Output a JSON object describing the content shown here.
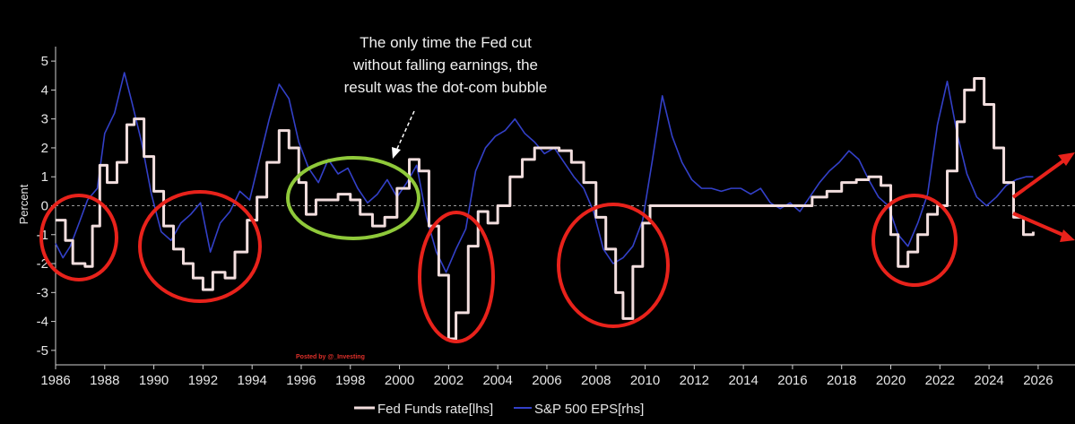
{
  "chart_data": {
    "type": "line",
    "ylabel": "Percent",
    "ylim": [
      -5.5,
      5.5
    ],
    "yticks": [
      "5",
      "4",
      "3",
      "2",
      "1",
      "0",
      "-1",
      "-2",
      "-3",
      "-4",
      "-5"
    ],
    "xlim": [
      1986,
      2027.5
    ],
    "xticks": [
      "1986",
      "1988",
      "1990",
      "1992",
      "1994",
      "1996",
      "1998",
      "2000",
      "2002",
      "2004",
      "2006",
      "2008",
      "2010",
      "2012",
      "2014",
      "2016",
      "2018",
      "2020",
      "2022",
      "2024",
      "2026"
    ],
    "annotation": "The only time the Fed cut without falling earnings, the result was the dot-com bubble",
    "annotation_lines": [
      "The only time the Fed cut",
      "without falling earnings, the",
      "result was the dot-com bubble"
    ],
    "watermark": "Posted by @_Investing",
    "series": [
      {
        "name": "Fed Funds rate[lhs]",
        "color": "#f2dede",
        "style": "step",
        "x": [
          1986.0,
          1986.4,
          1986.7,
          1987.2,
          1987.5,
          1987.8,
          1988.1,
          1988.5,
          1988.9,
          1989.2,
          1989.6,
          1990.0,
          1990.4,
          1990.8,
          1991.2,
          1991.6,
          1992.0,
          1992.4,
          1992.9,
          1993.3,
          1993.8,
          1994.2,
          1994.6,
          1995.1,
          1995.5,
          1995.9,
          1996.2,
          1996.6,
          1997.0,
          1997.5,
          1998.0,
          1998.4,
          1998.9,
          1999.4,
          1999.9,
          2000.4,
          2000.8,
          2001.2,
          2001.6,
          2002.0,
          2002.3,
          2002.8,
          2003.2,
          2003.6,
          2004.0,
          2004.5,
          2005.0,
          2005.5,
          2006.0,
          2006.5,
          2007.0,
          2007.5,
          2008.0,
          2008.4,
          2008.8,
          2009.1,
          2009.5,
          2009.9,
          2010.2,
          2012.0,
          2014.0,
          2016.0,
          2016.8,
          2017.4,
          2018.0,
          2018.6,
          2019.1,
          2019.6,
          2020.0,
          2020.3,
          2020.7,
          2021.1,
          2021.5,
          2021.9,
          2022.3,
          2022.7,
          2023.0,
          2023.4,
          2023.8,
          2024.2,
          2024.6,
          2025.0,
          2025.4,
          2025.8
        ],
        "y": [
          -0.5,
          -1.2,
          -2.0,
          -2.1,
          -0.7,
          1.4,
          0.8,
          1.5,
          2.8,
          3.0,
          1.7,
          0.5,
          -0.7,
          -1.5,
          -2.0,
          -2.5,
          -2.9,
          -2.3,
          -2.5,
          -1.6,
          -0.5,
          0.3,
          1.5,
          2.6,
          2.0,
          0.8,
          -0.3,
          0.2,
          0.2,
          0.4,
          0.2,
          -0.3,
          -0.7,
          -0.4,
          0.6,
          1.6,
          1.2,
          -0.7,
          -2.4,
          -4.6,
          -3.7,
          -1.4,
          -0.2,
          -0.6,
          0.0,
          1.0,
          1.6,
          2.0,
          2.0,
          1.9,
          1.5,
          0.8,
          -0.4,
          -1.5,
          -3.0,
          -3.9,
          -2.1,
          -0.6,
          0.0,
          0.0,
          0.0,
          0.0,
          0.3,
          0.5,
          0.8,
          0.9,
          1.0,
          0.7,
          -1.0,
          -2.1,
          -1.6,
          -1.0,
          -0.3,
          0.0,
          1.2,
          2.9,
          4.0,
          4.4,
          3.5,
          2.0,
          0.8,
          -0.4,
          -1.0,
          -0.9
        ]
      },
      {
        "name": "S&P 500 EPS[rhs]",
        "color": "#3340c8",
        "style": "line",
        "x": [
          1986.0,
          1986.3,
          1986.6,
          1987.0,
          1987.3,
          1987.7,
          1988.0,
          1988.4,
          1988.8,
          1989.1,
          1989.5,
          1989.9,
          1990.3,
          1990.7,
          1991.1,
          1991.5,
          1991.9,
          1992.3,
          1992.7,
          1993.1,
          1993.5,
          1993.9,
          1994.3,
          1994.7,
          1995.1,
          1995.5,
          1995.9,
          1996.3,
          1996.7,
          1997.1,
          1997.5,
          1997.9,
          1998.3,
          1998.7,
          1999.1,
          1999.5,
          1999.9,
          2000.3,
          2000.7,
          2001.1,
          2001.5,
          2001.9,
          2002.3,
          2002.7,
          2003.1,
          2003.5,
          2003.9,
          2004.3,
          2004.7,
          2005.1,
          2005.5,
          2005.9,
          2006.3,
          2006.7,
          2007.1,
          2007.5,
          2007.9,
          2008.3,
          2008.7,
          2009.1,
          2009.5,
          2009.9,
          2010.3,
          2010.7,
          2011.1,
          2011.5,
          2011.9,
          2012.3,
          2012.7,
          2013.1,
          2013.5,
          2013.9,
          2014.3,
          2014.7,
          2015.1,
          2015.5,
          2015.9,
          2016.3,
          2016.7,
          2017.1,
          2017.5,
          2017.9,
          2018.3,
          2018.7,
          2019.1,
          2019.5,
          2019.9,
          2020.3,
          2020.7,
          2021.1,
          2021.5,
          2021.9,
          2022.3,
          2022.7,
          2023.1,
          2023.5,
          2023.9,
          2024.3,
          2024.7,
          2025.1,
          2025.5,
          2025.8
        ],
        "y": [
          -1.3,
          -1.8,
          -1.4,
          -0.5,
          0.2,
          0.6,
          2.5,
          3.2,
          4.6,
          3.6,
          2.2,
          0.4,
          -0.9,
          -1.2,
          -0.6,
          -0.3,
          0.1,
          -1.6,
          -0.6,
          -0.2,
          0.5,
          0.2,
          1.6,
          3.0,
          4.2,
          3.7,
          2.2,
          1.3,
          0.8,
          1.6,
          1.1,
          1.3,
          0.6,
          0.1,
          0.4,
          0.9,
          0.3,
          0.8,
          1.4,
          -0.4,
          -1.6,
          -2.3,
          -1.5,
          -0.8,
          1.2,
          2.0,
          2.4,
          2.6,
          3.0,
          2.5,
          2.2,
          1.8,
          2.0,
          1.5,
          1.0,
          0.6,
          -0.2,
          -1.5,
          -2.0,
          -1.8,
          -1.4,
          -0.5,
          1.6,
          3.8,
          2.4,
          1.5,
          0.9,
          0.6,
          0.6,
          0.5,
          0.6,
          0.6,
          0.4,
          0.6,
          0.1,
          -0.1,
          0.1,
          -0.2,
          0.3,
          0.8,
          1.2,
          1.5,
          1.9,
          1.6,
          0.9,
          0.3,
          0.0,
          -1.0,
          -1.4,
          -0.6,
          0.4,
          2.8,
          4.3,
          2.5,
          1.1,
          0.3,
          0.0,
          0.3,
          0.7,
          0.9,
          1.0,
          1.0
        ]
      }
    ],
    "highlight_circles": [
      {
        "label": "1986-1988",
        "color": "#e8221b"
      },
      {
        "label": "1990-1994",
        "color": "#e8221b"
      },
      {
        "label": "1995-2000",
        "color": "#8fc93a"
      },
      {
        "label": "2000-2003",
        "color": "#e8221b"
      },
      {
        "label": "2007-2010",
        "color": "#e8221b"
      },
      {
        "label": "2019-2021",
        "color": "#e8221b"
      }
    ],
    "arrows_color": "#e8221b"
  }
}
